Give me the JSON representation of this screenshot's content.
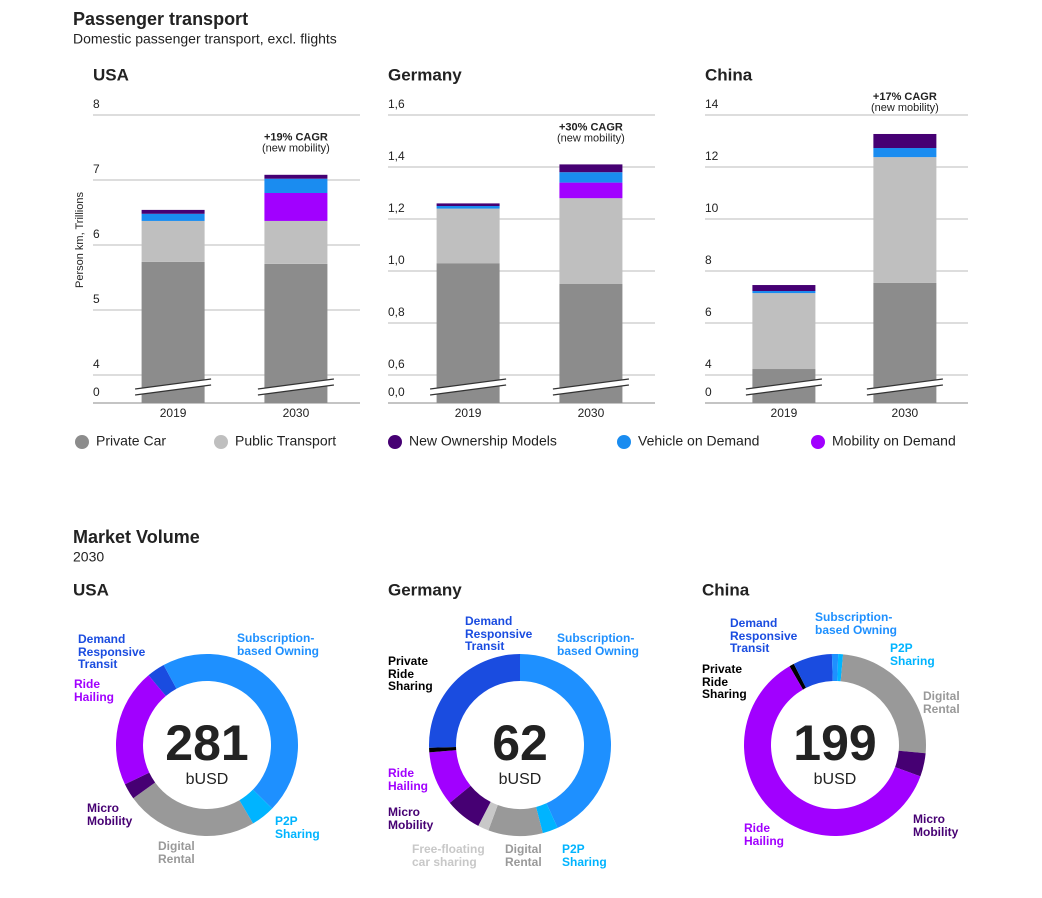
{
  "header": {
    "title": "Passenger transport",
    "subtitle": "Domestic passenger transport, excl. flights"
  },
  "market": {
    "title": "Market Volume",
    "subtitle": "2030"
  },
  "chart_data": [
    {
      "type": "bar",
      "title": "USA",
      "ylabel": "Person km, Trillions",
      "stacked": true,
      "axis_break": true,
      "grid": true,
      "categories": [
        "2019",
        "2030"
      ],
      "series": [
        {
          "name": "Private Car",
          "color": "#8c8c8c",
          "values": [
            5.74,
            5.71
          ]
        },
        {
          "name": "Public Transport",
          "color": "#bfbfbf",
          "values": [
            0.63,
            0.66
          ]
        },
        {
          "name": "New Ownership Models",
          "color": "#460073",
          "values": [
            0.06,
            0.06
          ]
        },
        {
          "name": "Vehicle on Demand",
          "color": "#1a8cf0",
          "values": [
            0.11,
            0.22
          ]
        },
        {
          "name": "Mobility on Demand",
          "color": "#a100ff",
          "values": [
            0,
            0.43
          ]
        }
      ],
      "ylim": [
        0,
        8
      ],
      "yticks": [
        0,
        4,
        5,
        6,
        7,
        8
      ],
      "annotation": {
        "text": "+19% CAGR",
        "note": "(new mobility)"
      }
    },
    {
      "type": "bar",
      "title": "Germany",
      "stacked": true,
      "axis_break": true,
      "grid": true,
      "categories": [
        "2019",
        "2030"
      ],
      "series": [
        {
          "name": "Private Car",
          "color": "#8c8c8c",
          "values": [
            1.03,
            0.95
          ]
        },
        {
          "name": "Public Transport",
          "color": "#bfbfbf",
          "values": [
            0.21,
            0.33
          ]
        },
        {
          "name": "New Ownership Models",
          "color": "#460073",
          "values": [
            0.01,
            0.03
          ]
        },
        {
          "name": "Vehicle on Demand",
          "color": "#1a8cf0",
          "values": [
            0.01,
            0.04
          ]
        },
        {
          "name": "Mobility on Demand",
          "color": "#a100ff",
          "values": [
            0,
            0.06
          ]
        }
      ],
      "ylim": [
        0,
        1.6
      ],
      "yticks": [
        {
          "value": 0,
          "label": "0,0"
        },
        {
          "value": 0.6,
          "label": "0,6"
        },
        {
          "value": 0.8,
          "label": "0,8"
        },
        {
          "value": 1,
          "label": "1,0"
        },
        {
          "value": 1.2,
          "label": "1,2"
        },
        {
          "value": 1.4,
          "label": "1,4"
        },
        {
          "value": 1.6,
          "label": "1,6"
        }
      ],
      "annotation": {
        "text": "+30% CAGR",
        "note": "(new mobility)"
      }
    },
    {
      "type": "bar",
      "title": "China",
      "stacked": true,
      "axis_break": true,
      "grid": true,
      "categories": [
        "2019",
        "2030"
      ],
      "series": [
        {
          "name": "Private Car",
          "color": "#8c8c8c",
          "values": [
            4.23,
            7.54
          ]
        },
        {
          "name": "Public Transport",
          "color": "#bfbfbf",
          "values": [
            2.92,
            4.84
          ]
        },
        {
          "name": "New Ownership Models",
          "color": "#460073",
          "values": [
            0.23,
            0.54
          ]
        },
        {
          "name": "Vehicle on Demand",
          "color": "#1a8cf0",
          "values": [
            0.08,
            0.35
          ]
        },
        {
          "name": "Mobility on Demand",
          "color": "#a100ff",
          "values": [
            0,
            0
          ]
        }
      ],
      "ylim": [
        0,
        14
      ],
      "yticks": [
        0,
        4,
        6,
        8,
        10,
        12,
        14
      ],
      "annotation": {
        "text": "+17% CAGR",
        "note": "(new mobility)"
      }
    },
    {
      "type": "donut",
      "title": "USA",
      "total": 281,
      "total_unit": "bUSD",
      "categories": [
        "Demand Responsive Transit",
        "Subscription-based Owning",
        "P2P Sharing",
        "Digital Rental",
        "Micro Mobility",
        "Ride Hailing"
      ],
      "values": [
        9,
        127,
        12,
        66,
        8,
        59
      ],
      "colors": [
        "#1a4ce0",
        "#1e90ff",
        "#00b4ff",
        "#999999",
        "#460073",
        "#a100ff"
      ]
    },
    {
      "type": "donut",
      "title": "Germany",
      "total": 62,
      "total_unit": "bUSD",
      "categories": [
        "Subscription-based Owning",
        "P2P Sharing",
        "Digital Rental",
        "Free-floating car sharing",
        "Micro Mobility",
        "Ride Hailing",
        "Private Ride Sharing",
        "Demand Responsive Transit"
      ],
      "values": [
        26.8,
        1.7,
        6,
        1.2,
        4,
        6,
        0.5,
        15.8
      ],
      "colors": [
        "#1e90ff",
        "#00b4ff",
        "#999999",
        "#c8c8c8",
        "#460073",
        "#a100ff",
        "#000000",
        "#1a4ce0"
      ]
    },
    {
      "type": "donut",
      "title": "China",
      "total": 199,
      "total_unit": "bUSD",
      "categories": [
        "Private Ride Sharing",
        "Demand Responsive Transit",
        "Subscription-based Owning",
        "P2P Sharing",
        "Digital Rental",
        "Micro Mobility",
        "Ride Hailing"
      ],
      "values": [
        1.7,
        13.8,
        2.2,
        1.7,
        49.8,
        8.3,
        121.5
      ],
      "colors": [
        "#000000",
        "#1a4ce0",
        "#1e90ff",
        "#00b4ff",
        "#999999",
        "#460073",
        "#a100ff"
      ]
    }
  ]
}
